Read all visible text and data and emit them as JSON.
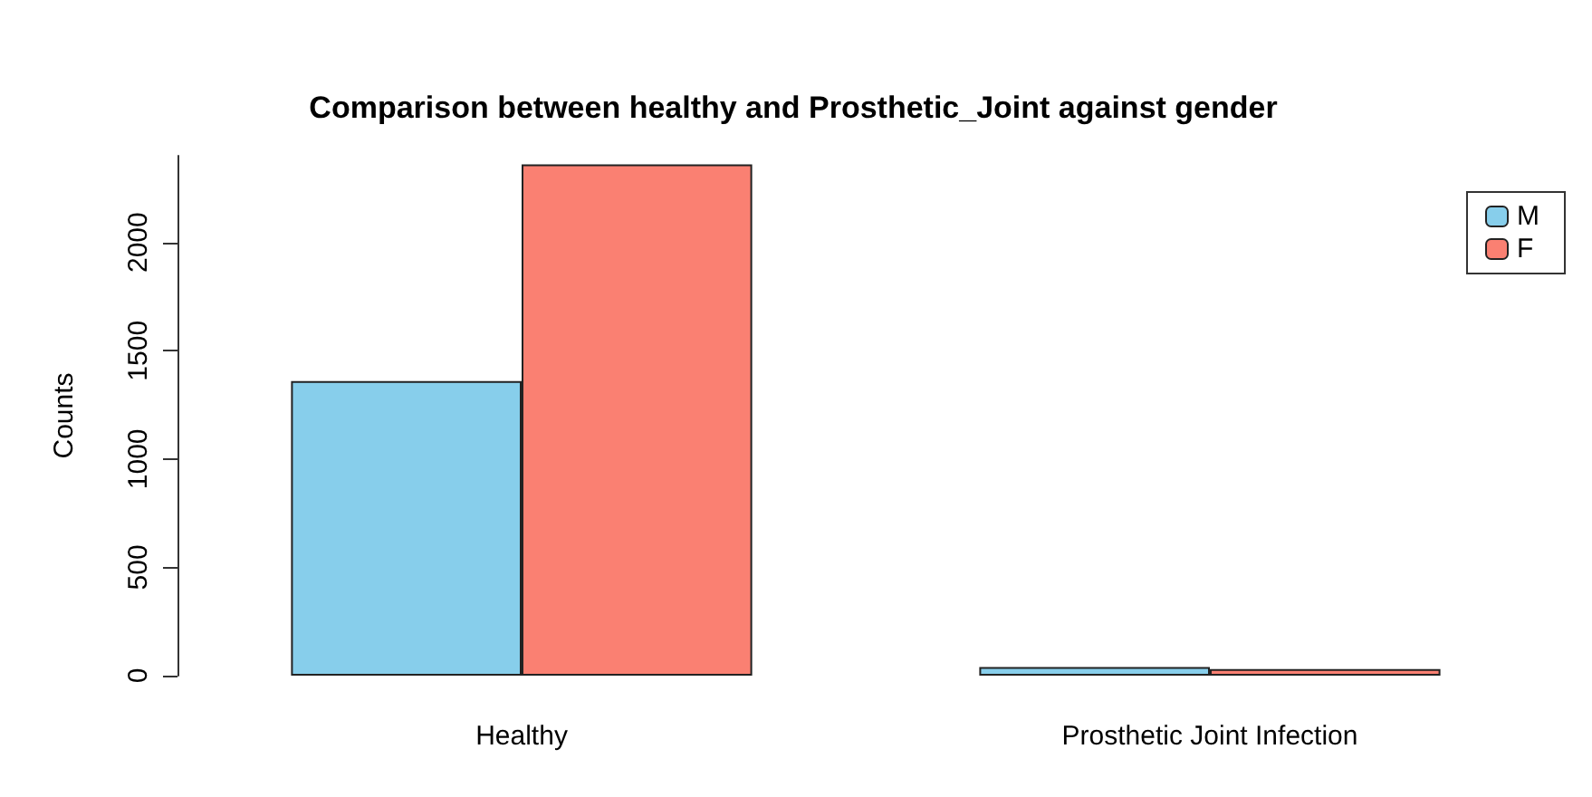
{
  "chart_data": {
    "type": "bar",
    "title": "Comparison between healthy and Prosthetic_Joint against gender",
    "ylabel": "Counts",
    "categories": [
      "Healthy",
      "Prosthetic Joint Infection"
    ],
    "series": [
      {
        "name": "M",
        "color": "#87ceeb",
        "values": [
          1360,
          40
        ]
      },
      {
        "name": "F",
        "color": "#fa8072",
        "values": [
          2360,
          30
        ]
      }
    ],
    "ylim": [
      0,
      2400
    ],
    "yticks": [
      0,
      500,
      1000,
      1500,
      2000
    ],
    "grid": false,
    "legend": "top right"
  }
}
